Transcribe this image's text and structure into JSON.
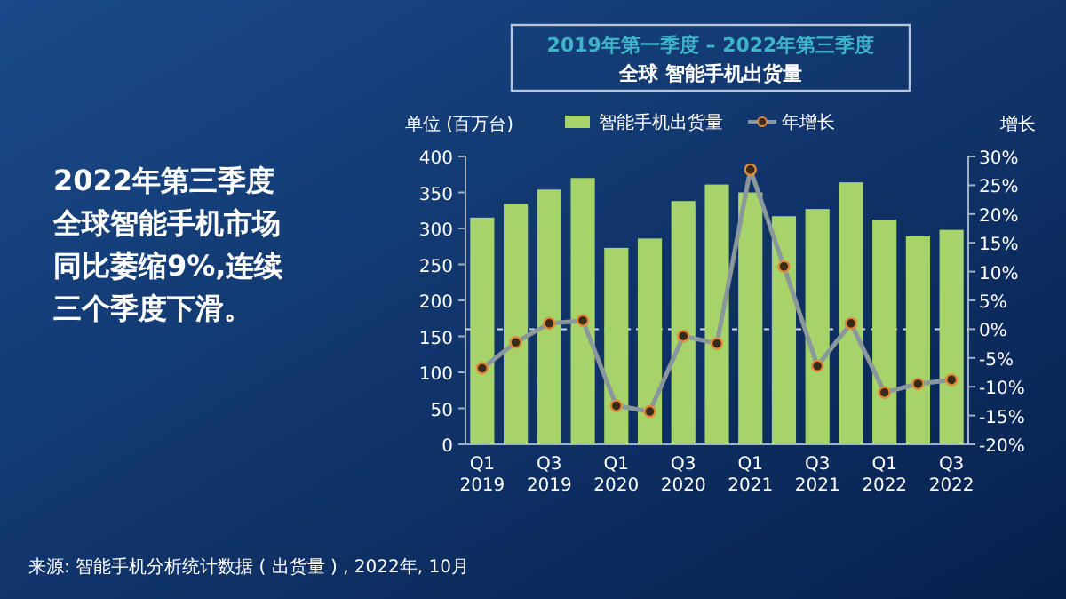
{
  "chart_data": {
    "type": "bar",
    "title": "2019年第一季度 – 2022年第三季度",
    "subtitle": "全球 智能手机出货量",
    "ylabel": "单位 (百万台)",
    "y2label": "增长",
    "categories": [
      "Q1 2019",
      null,
      "Q3 2019",
      null,
      "Q1 2020",
      null,
      "Q3 2020",
      null,
      "Q1 2021",
      null,
      "Q3 2021",
      null,
      "Q1 2022",
      null,
      "Q3 2022"
    ],
    "series": [
      {
        "name": "智能手机出货量",
        "color": "#a6d46a",
        "values": [
          315,
          334,
          354,
          370,
          273,
          286,
          338,
          361,
          350,
          317,
          327,
          364,
          312,
          289,
          298
        ]
      },
      {
        "name": "年增长",
        "type": "line",
        "axis": "y2",
        "color": "#8a979c",
        "marker": "circle",
        "values": [
          -6.8,
          -2.3,
          1.0,
          1.5,
          -13.3,
          -14.3,
          -1.2,
          -2.5,
          27.7,
          10.9,
          -6.4,
          1.0,
          -11.0,
          -9.5,
          -8.8
        ]
      }
    ],
    "ylim": [
      0,
      400
    ],
    "yticks": [
      0,
      50,
      100,
      150,
      200,
      250,
      300,
      350,
      400
    ],
    "y2lim": [
      -20,
      30
    ],
    "y2ticks": [
      {
        "value": -20,
        "label": "-20%"
      },
      {
        "value": -15,
        "label": "-15%"
      },
      {
        "value": -10,
        "label": "-10%"
      },
      {
        "value": -5,
        "label": "-5%"
      },
      {
        "value": 0,
        "label": "0%"
      },
      {
        "value": 5,
        "label": "5%"
      },
      {
        "value": 10,
        "label": "10%"
      },
      {
        "value": 15,
        "label": "15%"
      },
      {
        "value": 20,
        "label": "20%"
      },
      {
        "value": 25,
        "label": "25%"
      },
      {
        "value": 30,
        "label": "30%"
      }
    ],
    "ref_lines": [
      {
        "axis": "y2",
        "value": 0,
        "color": "#d0d8e0",
        "line_style": "dashed"
      }
    ],
    "legend": "top",
    "grid": false,
    "annotations": [
      "2022年第三季度全球智能手机市场同比萎缩9%,连续三个季度下滑。",
      "来源: 智能手机分析统计数据 ( 出货量 ) , 2022年, 10月"
    ]
  }
}
